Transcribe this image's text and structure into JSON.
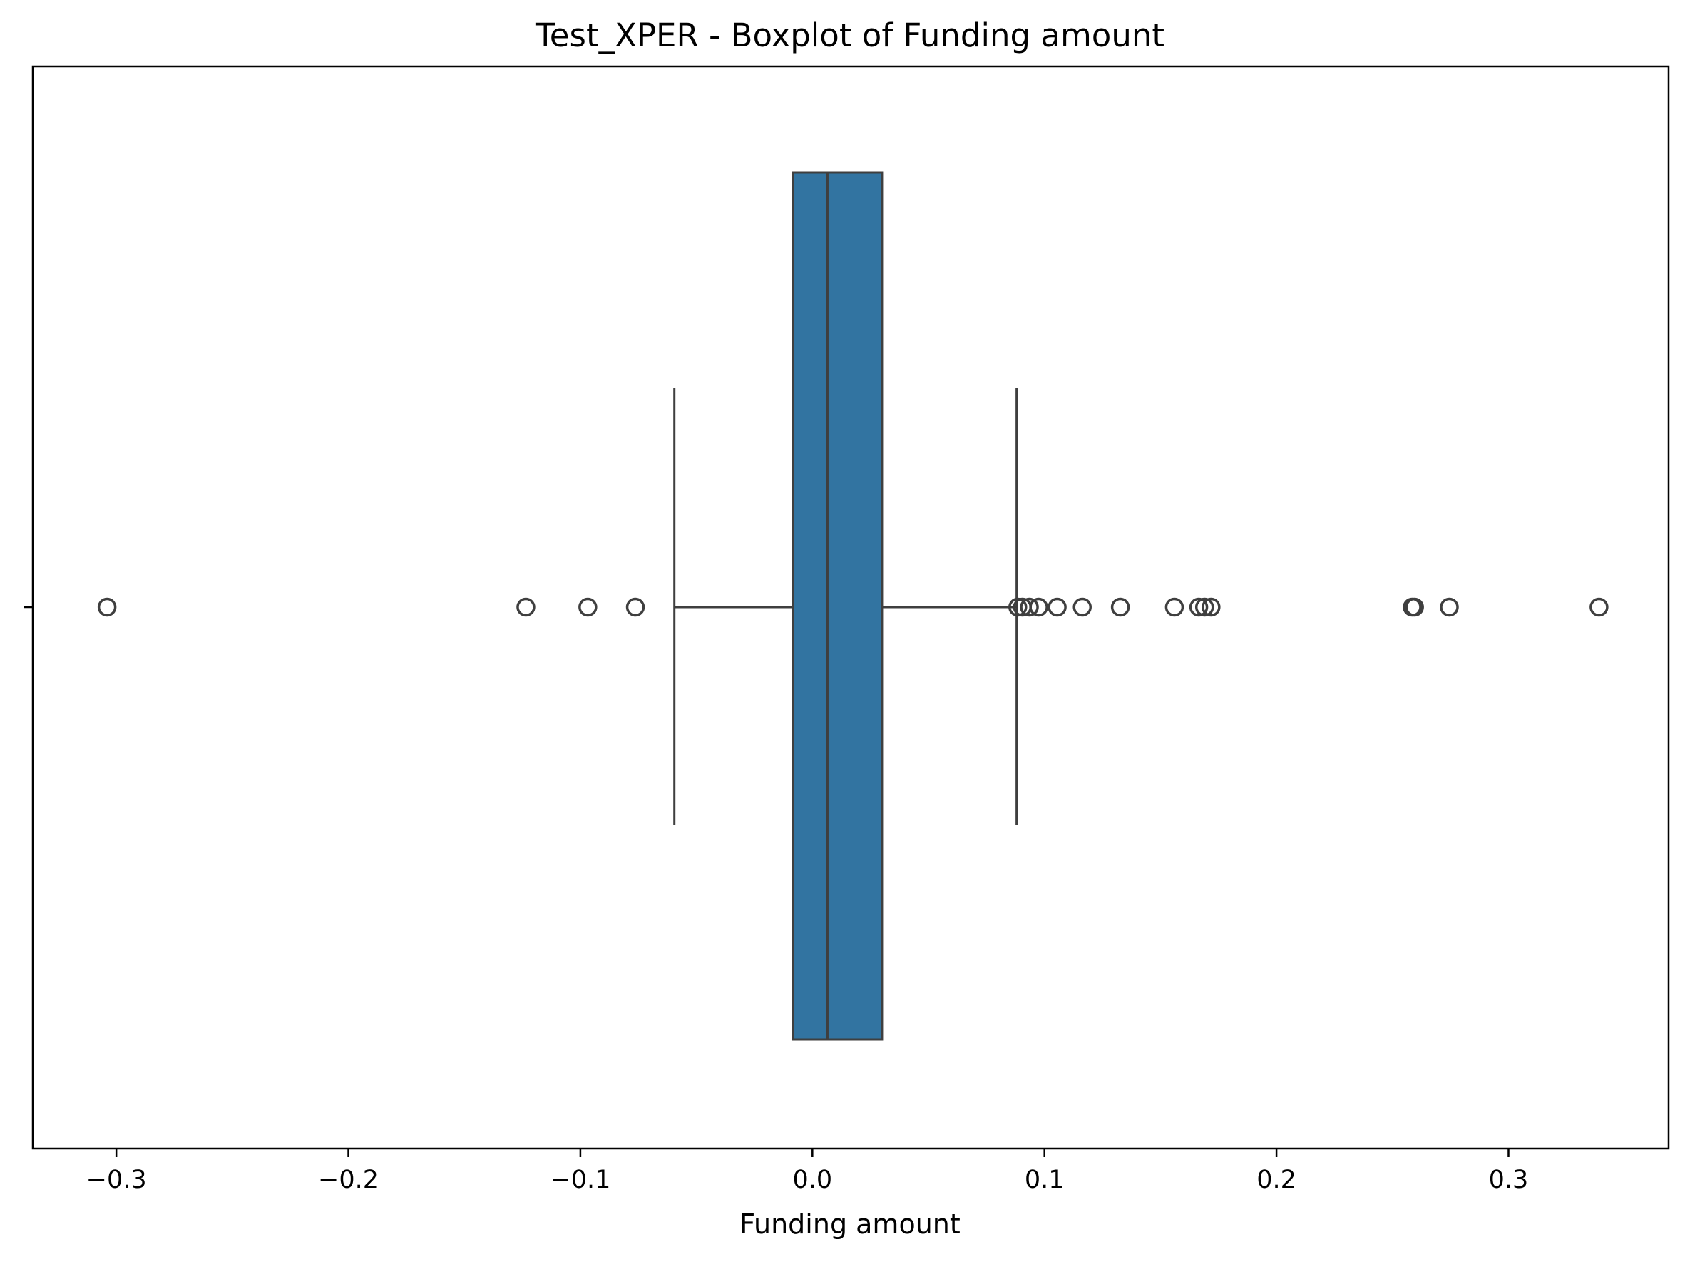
{
  "chart_data": {
    "type": "boxplot",
    "title": "Test_XPER - Boxplot of Funding amount",
    "xlabel": "Funding amount",
    "ylabel": "",
    "orientation": "horizontal",
    "xlim": [
      -0.336,
      0.369
    ],
    "x_ticks": [
      -0.3,
      -0.2,
      -0.1,
      0.0,
      0.1,
      0.2,
      0.3
    ],
    "x_tick_labels": [
      "−0.3",
      "−0.2",
      "−0.1",
      "0.0",
      "0.1",
      "0.2",
      "0.3"
    ],
    "y_ticks": [
      ""
    ],
    "grid": false,
    "legend": "none",
    "box": {
      "whisker_low": -0.0595,
      "q1": -0.0085,
      "median": 0.0065,
      "q3": 0.03,
      "whisker_high": 0.088
    },
    "outliers": [
      -0.304,
      -0.1235,
      -0.0968,
      -0.0763,
      0.0885,
      0.0905,
      0.0935,
      0.0975,
      0.1055,
      0.1163,
      0.1327,
      0.156,
      0.1665,
      0.169,
      0.1718,
      0.2585,
      0.2595,
      0.2745,
      0.339
    ],
    "colors": {
      "box_fill": "#3274a1",
      "line": "#3f3f3f",
      "axes": "#000000"
    }
  }
}
